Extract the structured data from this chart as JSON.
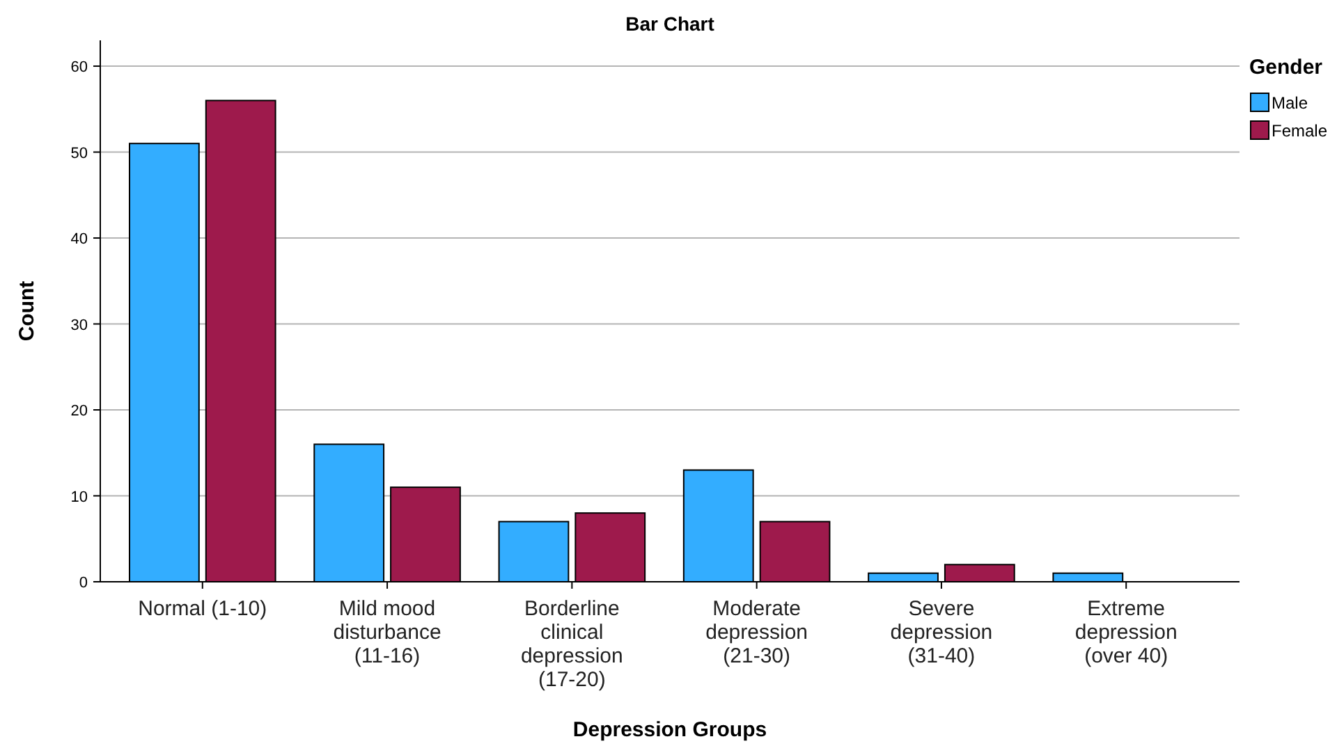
{
  "chart_data": {
    "type": "bar",
    "title": "Bar Chart",
    "xlabel": "Depression Groups",
    "ylabel": "Count",
    "legend_title": "Gender",
    "categories": [
      "Normal (1-10)",
      "Mild mood disturbance (11-16)",
      "Borderline clinical depression (17-20)",
      "Moderate depression (21-30)",
      "Severe depression (31-40)",
      "Extreme depression (over 40)"
    ],
    "series": [
      {
        "name": "Male",
        "color": "#33adff",
        "values": [
          51,
          16,
          7,
          13,
          1,
          1
        ]
      },
      {
        "name": "Female",
        "color": "#9e1a4c",
        "values": [
          56,
          11,
          8,
          7,
          2,
          0
        ]
      }
    ],
    "ylim": [
      0,
      63
    ],
    "yticks": [
      0,
      10,
      20,
      30,
      40,
      50,
      60
    ],
    "grid": "y",
    "legend": "top right"
  }
}
